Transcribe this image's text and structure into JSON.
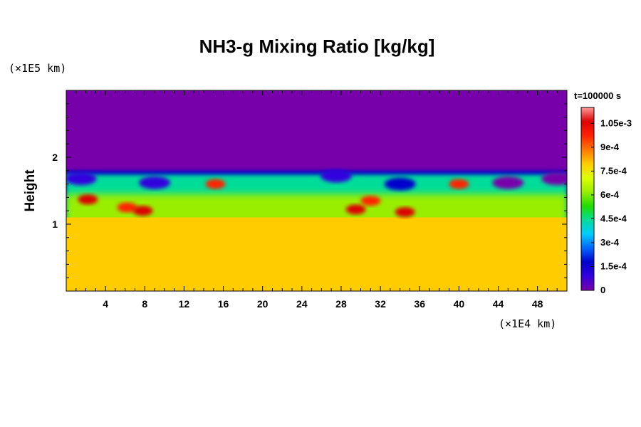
{
  "chart_data": {
    "type": "heatmap",
    "title": "NH3-g Mixing Ratio [kg/kg]",
    "ylabel": "Height",
    "y_unit": "(×1E5 km)",
    "x_unit": "(×1E4 km)",
    "time_label": "t=100000 s",
    "x_ticks": [
      "4",
      "8",
      "12",
      "16",
      "20",
      "24",
      "28",
      "32",
      "36",
      "40",
      "44",
      "48"
    ],
    "x_tick_values": [
      4,
      8,
      12,
      16,
      20,
      24,
      28,
      32,
      36,
      40,
      44,
      48
    ],
    "xlim": [
      0,
      51
    ],
    "y_ticks": [
      "1",
      "2"
    ],
    "y_tick_values": [
      1,
      2
    ],
    "ylim": [
      0,
      3
    ],
    "colorbar": {
      "labels": [
        "0",
        "1.5e-4",
        "3e-4",
        "4.5e-4",
        "6e-4",
        "7.5e-4",
        "9e-4",
        "1.05e-3"
      ],
      "values": [
        0,
        0.00015,
        0.0003,
        0.00045,
        0.0006,
        0.00075,
        0.0009,
        0.00105
      ],
      "range": [
        0,
        0.00115
      ],
      "colors": [
        "#7700aa",
        "#3300dd",
        "#0000cc",
        "#0066ff",
        "#00ccff",
        "#00dd99",
        "#22dd00",
        "#99ee00",
        "#ddff00",
        "#ffcc00",
        "#ff7700",
        "#ff2200",
        "#dd0000",
        "#ff9999"
      ]
    },
    "field": {
      "top_value": 0,
      "bottom_value": 0.00078,
      "cloud_top_height": 1.8,
      "mixed_layer_top_height": 1.1,
      "high_value_patches": [
        {
          "x": 2.2,
          "y": 1.37,
          "value": 0.00105
        },
        {
          "x": 6.2,
          "y": 1.25,
          "value": 0.001
        },
        {
          "x": 7.8,
          "y": 1.2,
          "value": 0.00108
        },
        {
          "x": 29.5,
          "y": 1.22,
          "value": 0.00108
        },
        {
          "x": 31.0,
          "y": 1.35,
          "value": 0.001
        },
        {
          "x": 34.5,
          "y": 1.18,
          "value": 0.00105
        },
        {
          "x": 40.0,
          "y": 1.6,
          "value": 0.00098
        },
        {
          "x": 15.2,
          "y": 1.6,
          "value": 0.00095
        }
      ],
      "low_value_patches": [
        {
          "x": 1.5,
          "y": 1.68,
          "value": 0.0001
        },
        {
          "x": 9.0,
          "y": 1.62,
          "value": 5e-05
        },
        {
          "x": 27.5,
          "y": 1.72,
          "value": 0.0001
        },
        {
          "x": 34.0,
          "y": 1.6,
          "value": 0.00015
        },
        {
          "x": 45.0,
          "y": 1.62,
          "value": 3e-05
        },
        {
          "x": 50.0,
          "y": 1.68,
          "value": 2e-05
        }
      ]
    }
  }
}
